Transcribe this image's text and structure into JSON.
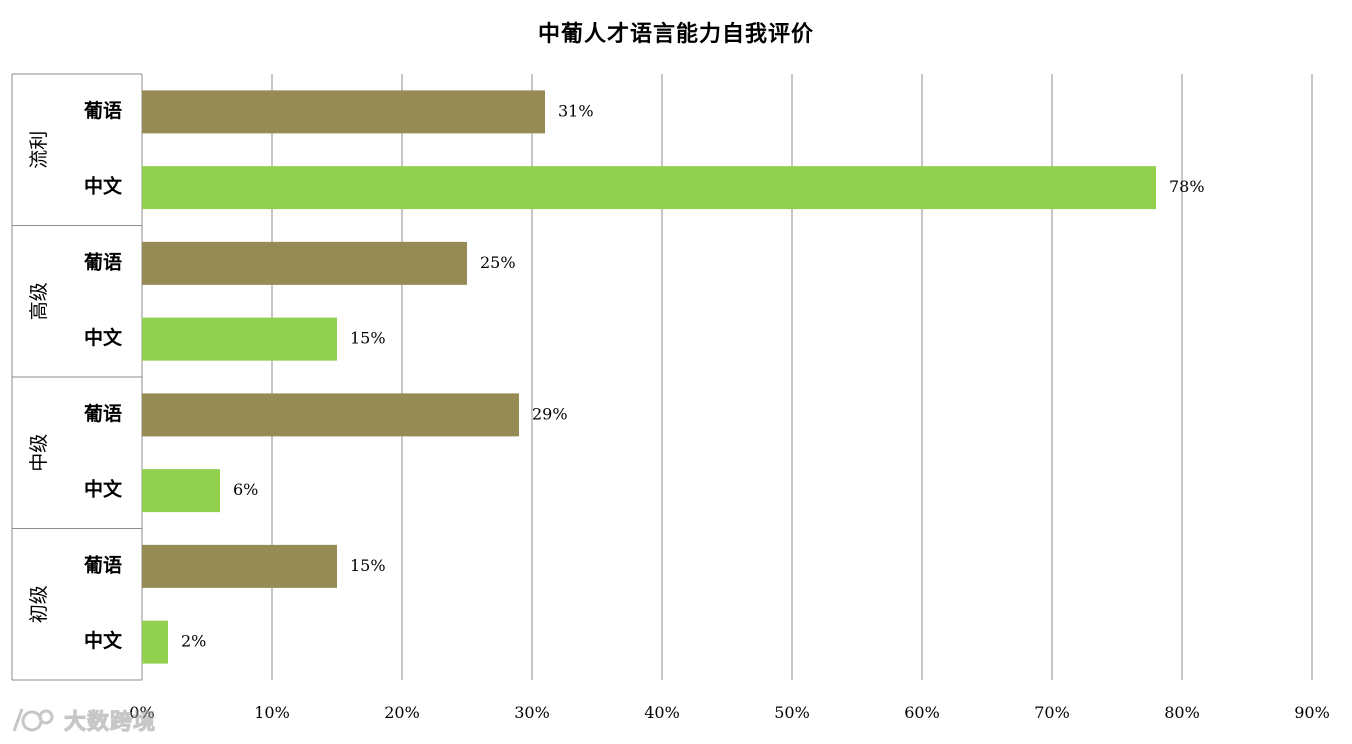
{
  "chart_data": {
    "type": "bar",
    "orientation": "horizontal",
    "title": "中葡人才语言能力自我评价",
    "xlim": [
      0,
      90
    ],
    "x_ticks": [
      "0%",
      "10%",
      "20%",
      "30%",
      "40%",
      "50%",
      "60%",
      "70%",
      "80%",
      "90%"
    ],
    "grid": true,
    "groups": [
      {
        "name": "流利",
        "bars": [
          {
            "label": "葡语",
            "value": 31,
            "value_label": "31%"
          },
          {
            "label": "中文",
            "value": 78,
            "value_label": "78%"
          }
        ]
      },
      {
        "name": "高级",
        "bars": [
          {
            "label": "葡语",
            "value": 25,
            "value_label": "25%"
          },
          {
            "label": "中文",
            "value": 15,
            "value_label": "15%"
          }
        ]
      },
      {
        "name": "中级",
        "bars": [
          {
            "label": "葡语",
            "value": 29,
            "value_label": "29%"
          },
          {
            "label": "中文",
            "value": 6,
            "value_label": "6%"
          }
        ]
      },
      {
        "name": "初级",
        "bars": [
          {
            "label": "葡语",
            "value": 15,
            "value_label": "15%"
          },
          {
            "label": "中文",
            "value": 2,
            "value_label": "2%"
          }
        ]
      }
    ],
    "colors": {
      "葡语": "#968b55",
      "中文": "#92d050"
    }
  },
  "watermark": {
    "text": "大数跨境",
    "icon": "logo-icon"
  }
}
